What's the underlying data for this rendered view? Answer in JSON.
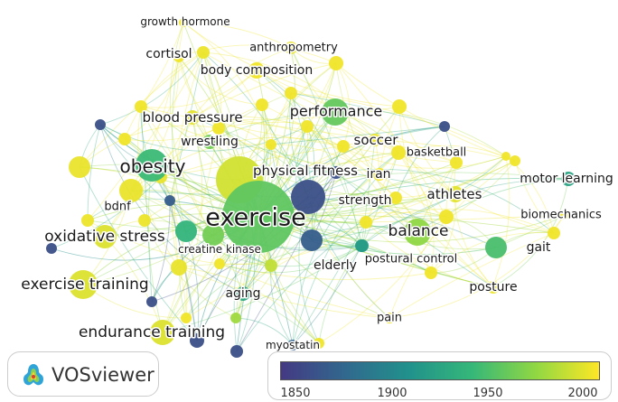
{
  "app": {
    "name": "VOSviewer"
  },
  "colorbar": {
    "ticks": [
      "1850",
      "1900",
      "1950",
      "2000"
    ],
    "stops": [
      "#443983",
      "#31688e",
      "#21918c",
      "#35b779",
      "#90d743",
      "#fde725"
    ]
  },
  "nodes": [
    {
      "id": "growth-hormone",
      "label": "growth hormone",
      "year": 2005
    },
    {
      "id": "cortisol",
      "label": "cortisol",
      "year": 2003
    },
    {
      "id": "anthropometry",
      "label": "anthropometry",
      "year": 2002
    },
    {
      "id": "body-composition",
      "label": "body composition",
      "year": 2004
    },
    {
      "id": "performance",
      "label": "performance",
      "year": 1960
    },
    {
      "id": "blood-pressure",
      "label": "blood pressure",
      "year": 2000
    },
    {
      "id": "soccer",
      "label": "soccer",
      "year": 2003
    },
    {
      "id": "basketball",
      "label": "basketball",
      "year": 2004
    },
    {
      "id": "wrestling",
      "label": "wrestling",
      "year": 1965
    },
    {
      "id": "obesity",
      "label": "obesity",
      "year": 1945
    },
    {
      "id": "physical-fitness",
      "label": "physical fitness",
      "year": 1995
    },
    {
      "id": "iran",
      "label": "iran",
      "year": 2006
    },
    {
      "id": "motor-learning",
      "label": "motor learning",
      "year": 1925
    },
    {
      "id": "strength",
      "label": "strength",
      "year": 1860
    },
    {
      "id": "athletes",
      "label": "athletes",
      "year": 2000
    },
    {
      "id": "bdnf",
      "label": "bdnf",
      "year": 2002
    },
    {
      "id": "exercise",
      "label": "exercise",
      "year": 1958
    },
    {
      "id": "biomechanics",
      "label": "biomechanics",
      "year": 2004
    },
    {
      "id": "balance",
      "label": "balance",
      "year": 1975
    },
    {
      "id": "oxidative-stress",
      "label": "oxidative stress",
      "year": 1998
    },
    {
      "id": "gait",
      "label": "gait",
      "year": 1950
    },
    {
      "id": "creatine-kinase",
      "label": "creatine kinase",
      "year": 1940
    },
    {
      "id": "elderly",
      "label": "elderly",
      "year": 1870
    },
    {
      "id": "postural-control",
      "label": "postural control",
      "year": 1920
    },
    {
      "id": "exercise-training",
      "label": "exercise training",
      "year": 1998
    },
    {
      "id": "posture",
      "label": "posture",
      "year": 2003
    },
    {
      "id": "aging",
      "label": "aging",
      "year": 1930
    },
    {
      "id": "pain",
      "label": "pain",
      "year": 2004
    },
    {
      "id": "endurance-training",
      "label": "endurance training",
      "year": 1998
    },
    {
      "id": "myostatin",
      "label": "myostatin",
      "year": 1870
    }
  ]
}
